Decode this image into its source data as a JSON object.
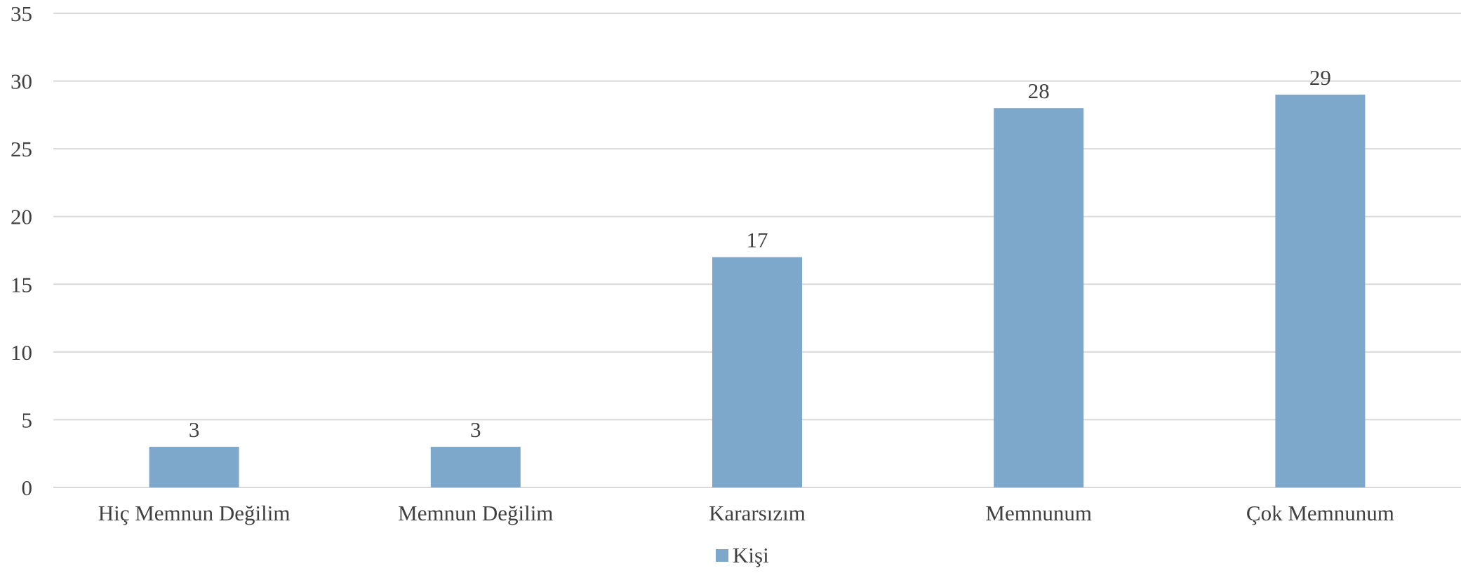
{
  "chart_data": {
    "type": "bar",
    "categories": [
      "Hiç Memnun Değilim",
      "Memnun Değilim",
      "Kararsızım",
      "Memnunum",
      "Çok Memnunum"
    ],
    "series": [
      {
        "name": "Kişi",
        "values": [
          3,
          3,
          17,
          28,
          29
        ],
        "color": "#7ea8cb"
      }
    ],
    "y_ticks": [
      "0",
      "5",
      "10",
      "15",
      "20",
      "25",
      "30",
      "35"
    ],
    "ylim": [
      0,
      35
    ],
    "grid": true,
    "legend_position": "bottom",
    "data_labels": true
  },
  "colors": {
    "bar": "#7ea8cb",
    "grid": "#d9d9d9",
    "text": "#404040"
  }
}
